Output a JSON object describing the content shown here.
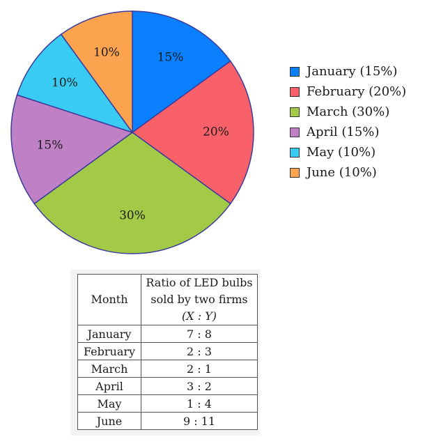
{
  "chart_data": {
    "type": "pie",
    "slices": [
      {
        "name": "January",
        "value": 15,
        "label": "15%",
        "legend": "January (15%)",
        "color": "#0a80ff"
      },
      {
        "name": "February",
        "value": 20,
        "label": "20%",
        "legend": "February (20%)",
        "color": "#f9616a"
      },
      {
        "name": "March",
        "value": 30,
        "label": "30%",
        "legend": "March (30%)",
        "color": "#a2ca47"
      },
      {
        "name": "April",
        "value": 15,
        "label": "15%",
        "legend": "April (15%)",
        "color": "#bf80c5"
      },
      {
        "name": "May",
        "value": 10,
        "label": "10%",
        "legend": "May (10%)",
        "color": "#39cbf2"
      },
      {
        "name": "June",
        "value": 10,
        "label": "10%",
        "legend": "June (10%)",
        "color": "#fba34f"
      }
    ],
    "legend_position": "right",
    "slice_border_color": "#3b3b9e"
  },
  "table": {
    "header": {
      "month": "Month",
      "ratio_line1": "Ratio of LED bulbs",
      "ratio_line2": "sold by two firms",
      "ratio_line3": "(X : Y)"
    },
    "rows": [
      {
        "month": "January",
        "ratio": "7 : 8"
      },
      {
        "month": "February",
        "ratio": "2 : 3"
      },
      {
        "month": "March",
        "ratio": "2 : 1"
      },
      {
        "month": "April",
        "ratio": "3 : 2"
      },
      {
        "month": "May",
        "ratio": "1 : 4"
      },
      {
        "month": "June",
        "ratio": "9 : 11"
      }
    ]
  }
}
